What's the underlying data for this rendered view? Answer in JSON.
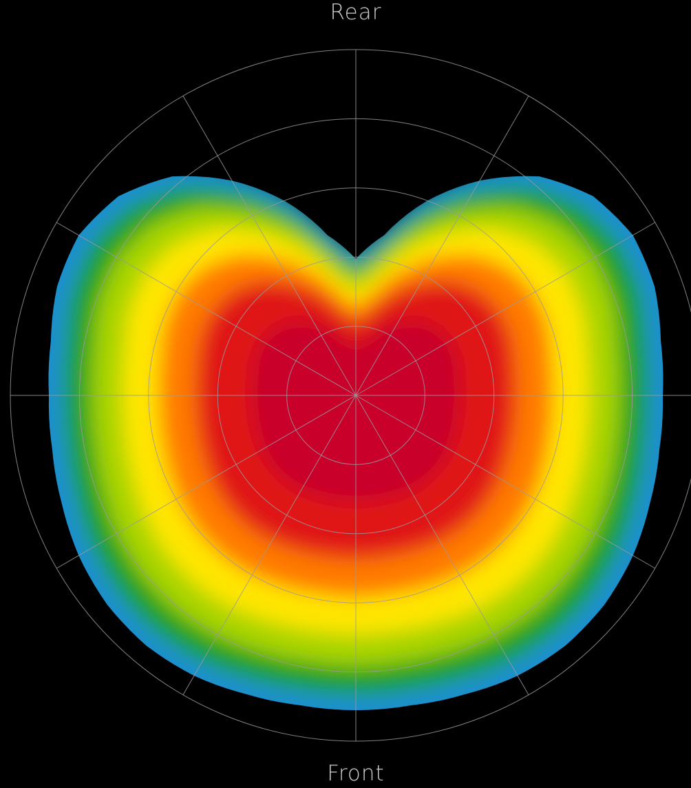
{
  "chart_data": {
    "type": "polar-heatmap",
    "labels": {
      "top": "Rear",
      "bottom": "Front"
    },
    "grid": true,
    "ring_count": 5,
    "spoke_count": 12,
    "color_scale": [
      "#c8002b",
      "#e01515",
      "#ff7a00",
      "#ffe600",
      "#a8d400",
      "#1ea11e",
      "#1b8fcf"
    ]
  }
}
